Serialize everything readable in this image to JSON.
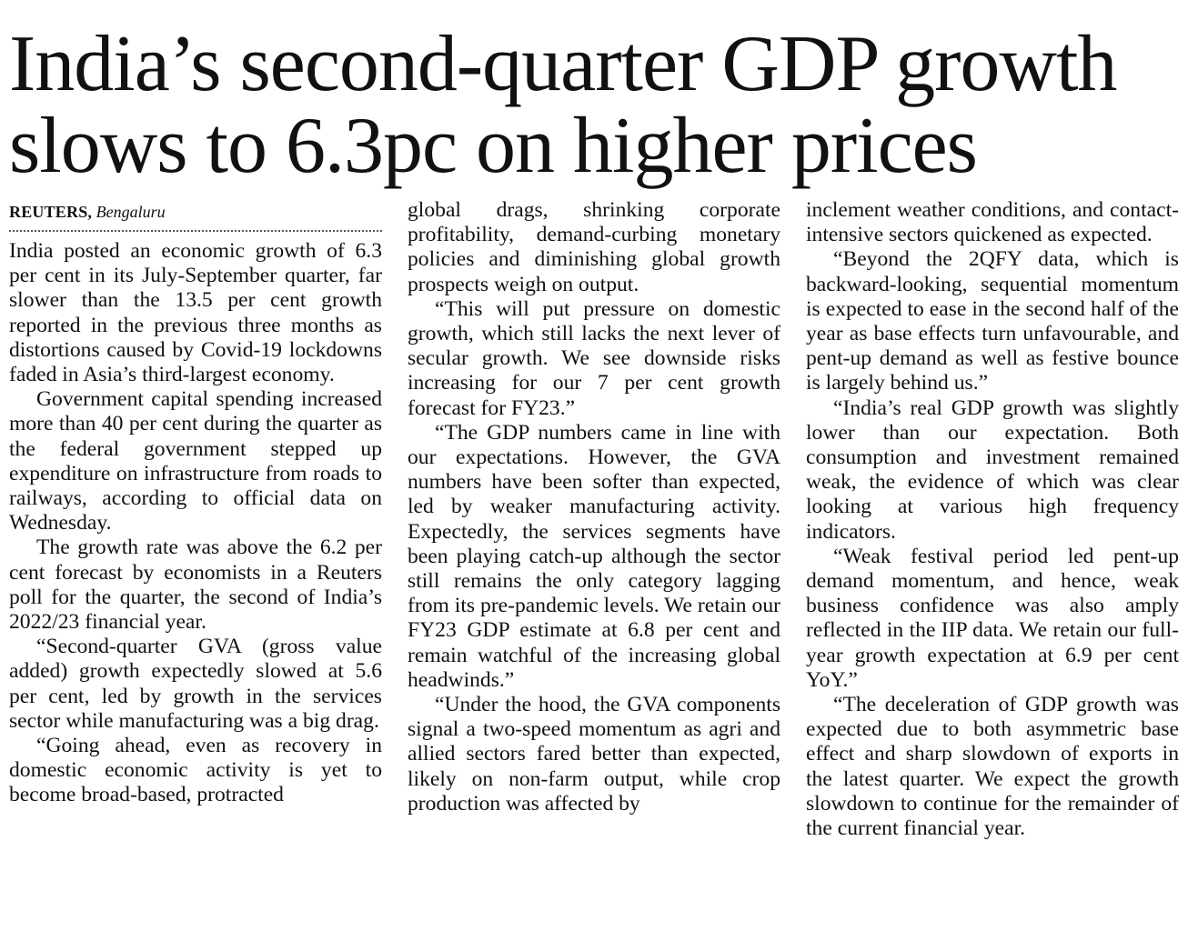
{
  "headline": {
    "line1": "India’s second-quarter GDP growth",
    "line2": "slows to 6.3pc on higher prices"
  },
  "byline": {
    "agency": "REUTERS,",
    "place": "Bengaluru"
  },
  "columns": [
    {
      "paragraphs": [
        "India posted an economic growth of 6.3 per cent in its July-September quarter, far slower than the 13.5 per cent growth reported in the previous three months as distortions caused by Covid-19 lockdowns faded in Asia’s third-largest economy.",
        "Government capital spending increased more than 40 per cent during the quarter as the federal government stepped up expenditure on infrastructure from roads to railways, according to official data on Wednesday.",
        "The growth rate was above the 6.2 per cent forecast by economists in a Reuters poll for the quarter, the second of India’s 2022/23 financial year.",
        "“Second-quarter GVA (gross value added) growth expectedly slowed at 5.6 per cent, led by growth in the services sector while manufacturing was a big drag.",
        "“Going ahead, even as recovery in domestic economic activity is yet to become broad-based, protracted"
      ]
    },
    {
      "paragraphs": [
        "global drags, shrinking corporate profitability, demand-curbing monetary policies and diminishing global growth prospects weigh on output.",
        "“This will put pressure on domestic growth, which still lacks the next lever of secular growth. We see downside risks increasing for our 7 per cent growth forecast for FY23.”",
        "“The GDP numbers came in line with our expectations. However, the GVA numbers have been softer than expected, led by weaker manufacturing activity. Expectedly, the services segments have been playing catch-up although the sector still remains the only category lagging from its pre-pandemic levels. We retain our FY23 GDP estimate at 6.8 per cent and remain watchful of the increasing global headwinds.”",
        "“Under the hood, the GVA components signal a two-speed momentum as agri and allied sectors fared better than expected, likely on non-farm output, while crop production was affected by"
      ]
    },
    {
      "paragraphs": [
        "inclement weather conditions, and contact-intensive sectors quickened as expected.",
        "“Beyond the 2QFY data, which is backward-looking, sequential momentum is expected to ease in the second half of the year as base effects turn unfavourable, and pent-up demand as well as festive bounce is largely behind us.”",
        "“India’s real GDP growth was slightly lower than our expectation. Both consumption and investment remained weak, the evidence of which was clear looking at various high frequency indicators.",
        "“Weak festival period led pent-up demand momentum, and hence, weak business confidence was also amply reflected in the IIP data. We retain our full-year growth expectation at 6.9 per cent YoY.”",
        "“The deceleration of GDP growth was expected due to both asymmetric base effect and sharp slowdown of exports in the latest quarter. We expect the growth slowdown to continue for the remainder of the current financial year."
      ]
    }
  ]
}
